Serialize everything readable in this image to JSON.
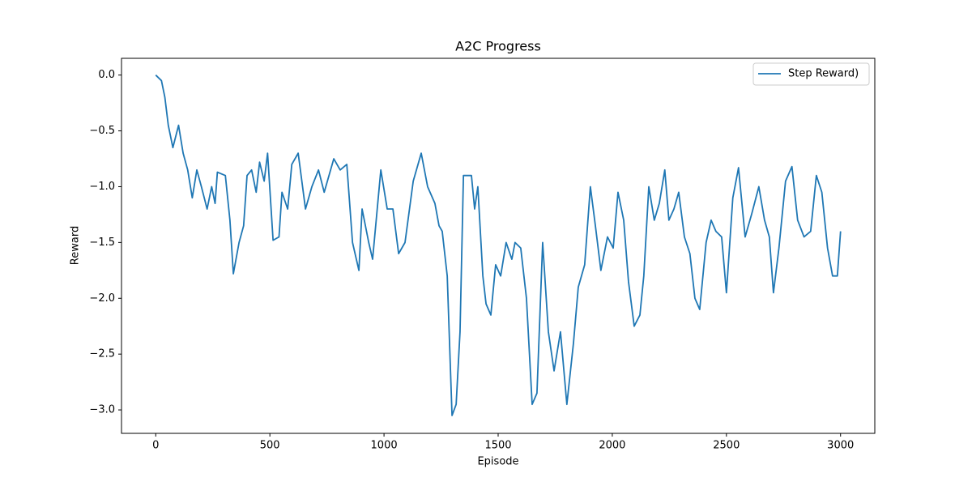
{
  "chart_data": {
    "type": "line",
    "title": "A2C Progress",
    "x_label": "Episode",
    "y_label": "Reward",
    "x": [
      0,
      10,
      25,
      40,
      55,
      75,
      100,
      120,
      140,
      160,
      180,
      200,
      225,
      245,
      260,
      270,
      305,
      325,
      340,
      365,
      385,
      400,
      420,
      440,
      455,
      475,
      490,
      514,
      540,
      553,
      578,
      596,
      624,
      656,
      684,
      713,
      738,
      780,
      808,
      837,
      862,
      890,
      904,
      933,
      950,
      986,
      1014,
      1039,
      1064,
      1092,
      1128,
      1163,
      1191,
      1223,
      1241,
      1255,
      1277,
      1298,
      1316,
      1333,
      1348,
      1383,
      1397,
      1411,
      1433,
      1447,
      1468,
      1489,
      1511,
      1535,
      1560,
      1574,
      1599,
      1624,
      1649,
      1670,
      1695,
      1720,
      1745,
      1773,
      1801,
      1830,
      1851,
      1879,
      1904,
      1926,
      1950,
      1979,
      2004,
      2025,
      2050,
      2071,
      2096,
      2121,
      2138,
      2160,
      2184,
      2206,
      2230,
      2248,
      2270,
      2291,
      2316,
      2340,
      2362,
      2383,
      2411,
      2433,
      2454,
      2479,
      2500,
      2528,
      2553,
      2582,
      2610,
      2642,
      2667,
      2688,
      2706,
      2730,
      2759,
      2787,
      2812,
      2840,
      2869,
      2894,
      2918,
      2943,
      2965,
      2986,
      3000
    ],
    "series": [
      {
        "name": "Step Reward)",
        "color": "#1f77b4",
        "values": [
          0,
          -0.02,
          -0.05,
          -0.2,
          -0.45,
          -0.65,
          -0.45,
          -0.7,
          -0.85,
          -1.1,
          -0.85,
          -1.0,
          -1.2,
          -1.0,
          -1.15,
          -0.87,
          -0.9,
          -1.3,
          -1.78,
          -1.5,
          -1.35,
          -0.9,
          -0.85,
          -1.05,
          -0.78,
          -0.95,
          -0.7,
          -1.48,
          -1.45,
          -1.05,
          -1.2,
          -0.8,
          -0.7,
          -1.2,
          -1.0,
          -0.85,
          -1.05,
          -0.75,
          -0.85,
          -0.8,
          -1.5,
          -1.75,
          -1.2,
          -1.5,
          -1.65,
          -0.85,
          -1.2,
          -1.2,
          -1.6,
          -1.5,
          -0.95,
          -0.7,
          -1.0,
          -1.15,
          -1.35,
          -1.4,
          -1.8,
          -3.05,
          -2.95,
          -2.3,
          -0.9,
          -0.9,
          -1.2,
          -1.0,
          -1.8,
          -2.05,
          -2.15,
          -1.7,
          -1.8,
          -1.5,
          -1.65,
          -1.5,
          -1.55,
          -2.0,
          -2.95,
          -2.85,
          -1.5,
          -2.3,
          -2.65,
          -2.3,
          -2.95,
          -2.4,
          -1.9,
          -1.7,
          -1.0,
          -1.35,
          -1.75,
          -1.45,
          -1.55,
          -1.05,
          -1.3,
          -1.85,
          -2.25,
          -2.15,
          -1.8,
          -1.0,
          -1.3,
          -1.15,
          -0.85,
          -1.3,
          -1.2,
          -1.05,
          -1.45,
          -1.6,
          -2.0,
          -2.1,
          -1.5,
          -1.3,
          -1.4,
          -1.45,
          -1.95,
          -1.1,
          -0.83,
          -1.45,
          -1.25,
          -1.0,
          -1.3,
          -1.45,
          -1.95,
          -1.55,
          -0.95,
          -0.82,
          -1.3,
          -1.45,
          -1.4,
          -0.9,
          -1.05,
          -1.55,
          -1.8,
          -1.8,
          -1.4
        ]
      }
    ],
    "xlim": [
      -150,
      3150
    ],
    "ylim": [
      -3.21,
      0.15
    ],
    "xticks": [
      0,
      500,
      1000,
      1500,
      2000,
      2500,
      3000
    ],
    "yticks": [
      {
        "value": 0,
        "label": "0.0"
      },
      {
        "value": -0.5,
        "label": "−0.5"
      },
      {
        "value": -1,
        "label": "−1.0"
      },
      {
        "value": -1.5,
        "label": "−1.5"
      },
      {
        "value": -2,
        "label": "−2.0"
      },
      {
        "value": -2.5,
        "label": "−2.5"
      },
      {
        "value": -3,
        "label": "−3.0"
      }
    ],
    "legend": "upper right",
    "grid": false
  }
}
